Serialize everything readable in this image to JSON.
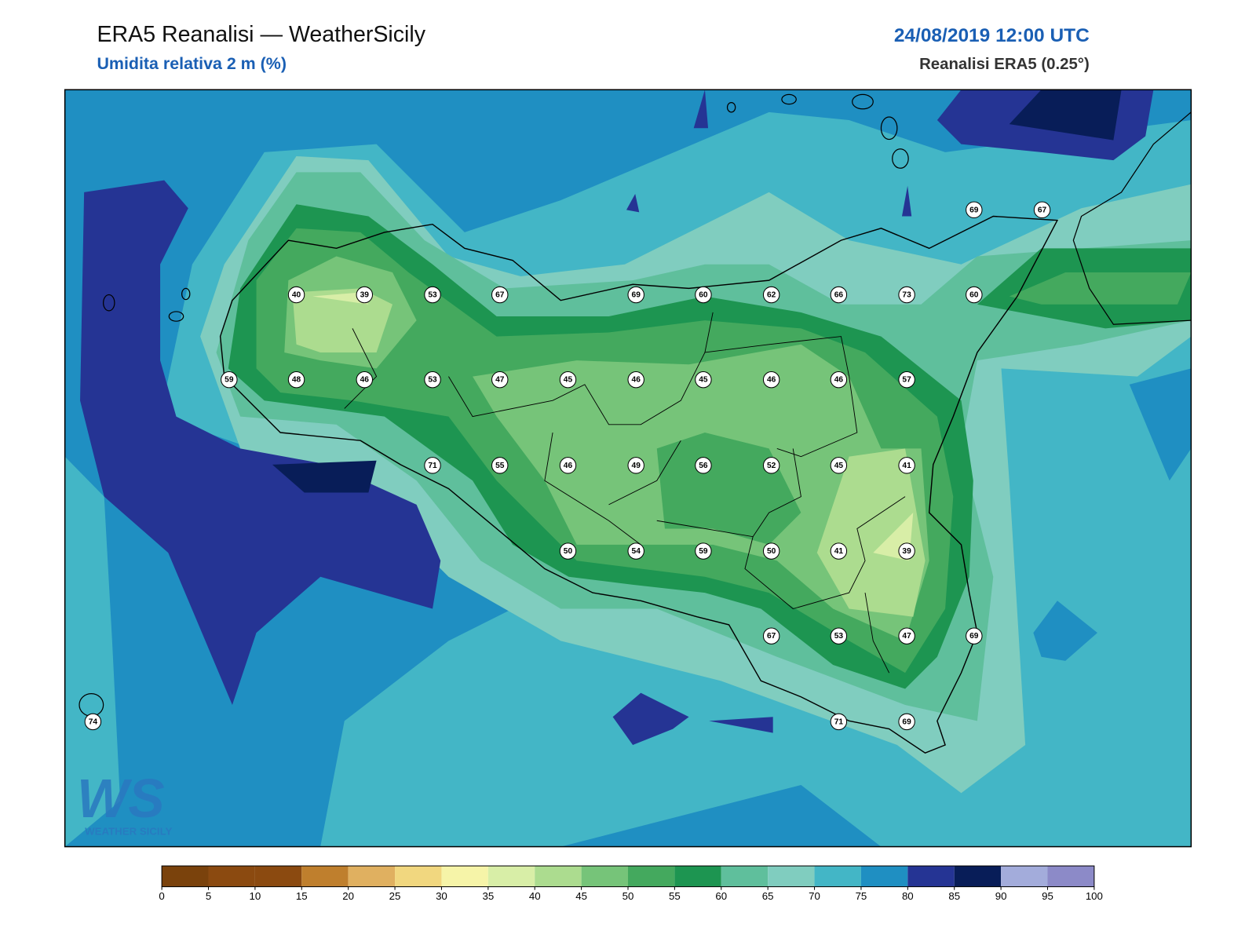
{
  "header": {
    "title": "ERA5 Reanalisi — WeatherSicily",
    "subtitle": "Umidita relativa 2 m (%)",
    "datetime": "24/08/2019 12:00 UTC",
    "source": "Reanalisi ERA5 (0.25°)"
  },
  "stations": [
    69,
    67,
    40,
    39,
    53,
    67,
    69,
    60,
    62,
    66,
    73,
    60,
    59,
    48,
    46,
    53,
    47,
    45,
    46,
    45,
    46,
    46,
    57,
    71,
    55,
    46,
    49,
    56,
    52,
    45,
    41,
    50,
    54,
    59,
    50,
    41,
    39,
    67,
    53,
    47,
    69,
    71,
    69,
    74
  ],
  "colorbar": {
    "ticks": [
      0,
      5,
      10,
      15,
      20,
      25,
      30,
      35,
      40,
      45,
      50,
      55,
      60,
      65,
      70,
      75,
      80,
      85,
      90,
      95,
      100
    ],
    "colors": [
      "#7a420c",
      "#8b4a10",
      "#8b4a10",
      "#bf7f2d",
      "#e0b060",
      "#f1d77f",
      "#f6f4a8",
      "#d8eea7",
      "#acdc8f",
      "#76c479",
      "#44a95e",
      "#1d9551",
      "#5fbf9c",
      "#80cdbf",
      "#43b6c6",
      "#1f8fc2",
      "#253494",
      "#081d58",
      "#a3acdb",
      "#8c8ac8"
    ]
  },
  "logo": {
    "text": "WS",
    "caption": "WEATHER SICILY"
  }
}
